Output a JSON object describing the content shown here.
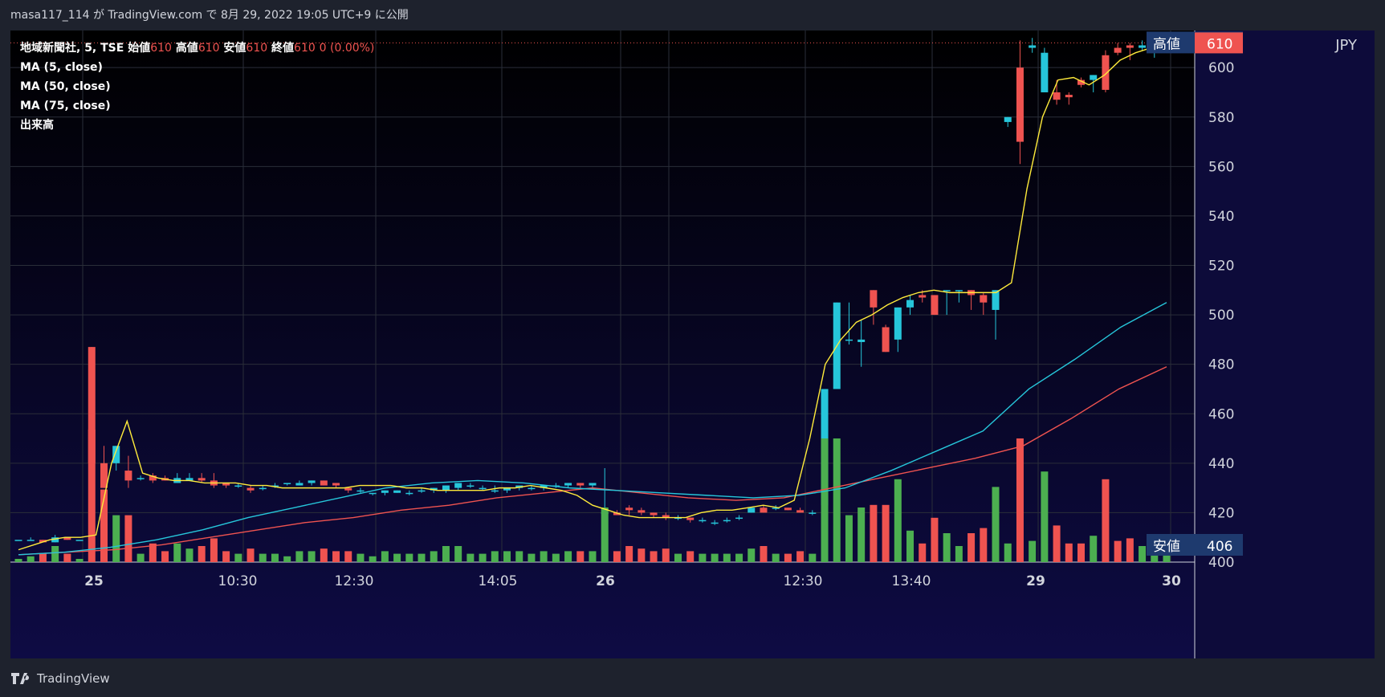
{
  "header": {
    "publish_line": "masa117_114 が TradingView.com で 8月 29, 2022 19:05 UTC+9 に公開"
  },
  "legend": {
    "symbol": "地域新聞社, 5, TSE",
    "open_label": "始値",
    "open_value": "610",
    "high_label": "高値",
    "high_value": "610",
    "low_label": "安値",
    "low_value": "610",
    "close_label": "終値",
    "close_value": "610",
    "change": "0 (0.00%)",
    "ma5": "MA (5, close)",
    "ma50": "MA (50, close)",
    "ma75": "MA (75, close)",
    "volume": "出来高"
  },
  "price_axis": {
    "currency": "JPY",
    "ticks": [
      "600",
      "580",
      "560",
      "540",
      "520",
      "500",
      "480",
      "460",
      "440",
      "420",
      "400"
    ],
    "high_tag_label": "高値",
    "high_tag_value": "610",
    "last_price_value": "610",
    "low_tag_label": "安値",
    "low_tag_value": "406"
  },
  "time_axis": {
    "labels": [
      "25",
      "10:30",
      "12:30",
      "14:05",
      "26",
      "12:30",
      "13:40",
      "29",
      "30"
    ]
  },
  "footer": {
    "brand": "TradingView"
  },
  "colors": {
    "up": "#26c6da",
    "down": "#ef5350",
    "vol_up": "#4caf50",
    "vol_down": "#ef5350",
    "ma5": "#ffeb3b",
    "ma50": "#26c6da",
    "ma75": "#ef5350",
    "grid": "#2a2e39"
  },
  "chart_data": {
    "type": "candlestick",
    "y_unit": "JPY",
    "ylim": [
      400,
      615
    ],
    "x_tick_labels": [
      "25",
      "10:30",
      "12:30",
      "14:05",
      "26",
      "12:30",
      "13:40",
      "29",
      "30"
    ],
    "candles_ohlc": [
      [
        409,
        409,
        409,
        409
      ],
      [
        409,
        410,
        409,
        409
      ],
      [
        409,
        409,
        408,
        408
      ],
      [
        408,
        411,
        408,
        410
      ],
      [
        410,
        410,
        409,
        409
      ],
      [
        409,
        409,
        409,
        409
      ],
      [
        487,
        487,
        440,
        440
      ],
      [
        440,
        447,
        430,
        430
      ],
      [
        440,
        447,
        437,
        447
      ],
      [
        437,
        443,
        430,
        433
      ],
      [
        434,
        435,
        433,
        434
      ],
      [
        435,
        436,
        432,
        433
      ],
      [
        434,
        435,
        433,
        433
      ],
      [
        432,
        436,
        432,
        434
      ],
      [
        433,
        436,
        433,
        434
      ],
      [
        434,
        436,
        432,
        433
      ],
      [
        433,
        436,
        430,
        431
      ],
      [
        432,
        432,
        430,
        431
      ],
      [
        431,
        432,
        430,
        431
      ],
      [
        430,
        431,
        428,
        429
      ],
      [
        430,
        431,
        429,
        430
      ],
      [
        431,
        432,
        430,
        431
      ],
      [
        432,
        432,
        431,
        432
      ],
      [
        431,
        433,
        431,
        432
      ],
      [
        432,
        433,
        431,
        433
      ],
      [
        433,
        433,
        431,
        431
      ],
      [
        432,
        432,
        430,
        431
      ],
      [
        430,
        430,
        428,
        429
      ],
      [
        429,
        430,
        428,
        429
      ],
      [
        428,
        428,
        427,
        428
      ],
      [
        428,
        429,
        427,
        429
      ],
      [
        428,
        429,
        428,
        429
      ],
      [
        428,
        429,
        427,
        428
      ],
      [
        429,
        430,
        428,
        429
      ],
      [
        429,
        430,
        428,
        430
      ],
      [
        429,
        431,
        428,
        431
      ],
      [
        430,
        432,
        429,
        432
      ],
      [
        431,
        432,
        430,
        431
      ],
      [
        430,
        431,
        429,
        430
      ],
      [
        429,
        431,
        428,
        429
      ],
      [
        429,
        430,
        428,
        430
      ],
      [
        430,
        431,
        429,
        431
      ],
      [
        430,
        431,
        429,
        430
      ],
      [
        430,
        431,
        429,
        431
      ],
      [
        431,
        432,
        430,
        431
      ],
      [
        431,
        432,
        430,
        432
      ],
      [
        432,
        432,
        430,
        431
      ],
      [
        431,
        432,
        430,
        432
      ],
      [
        420,
        438,
        418,
        420
      ],
      [
        420,
        421,
        419,
        419
      ],
      [
        422,
        423,
        419,
        421
      ],
      [
        421,
        422,
        419,
        420
      ],
      [
        420,
        420,
        418,
        419
      ],
      [
        419,
        420,
        417,
        418
      ],
      [
        418,
        419,
        417,
        418
      ],
      [
        418,
        418,
        416,
        417
      ],
      [
        417,
        418,
        416,
        417
      ],
      [
        416,
        417,
        415,
        416
      ],
      [
        417,
        418,
        416,
        417
      ],
      [
        418,
        419,
        417,
        418
      ],
      [
        420,
        422,
        420,
        422
      ],
      [
        422,
        423,
        420,
        420
      ],
      [
        422,
        423,
        421,
        422
      ],
      [
        422,
        422,
        421,
        421
      ],
      [
        421,
        422,
        420,
        420
      ],
      [
        420,
        421,
        419,
        420
      ],
      [
        423,
        470,
        420,
        470
      ],
      [
        470,
        505,
        478,
        505
      ],
      [
        490,
        505,
        488,
        490
      ],
      [
        489,
        498,
        479,
        490
      ],
      [
        510,
        510,
        496,
        503
      ],
      [
        495,
        496,
        485,
        485
      ],
      [
        490,
        503,
        485,
        503
      ],
      [
        503,
        508,
        500,
        506
      ],
      [
        508,
        510,
        505,
        507
      ],
      [
        508,
        508,
        500,
        500
      ],
      [
        510,
        510,
        500,
        510
      ],
      [
        510,
        510,
        505,
        510
      ],
      [
        510,
        510,
        502,
        508
      ],
      [
        508,
        509,
        500,
        505
      ],
      [
        502,
        510,
        490,
        510
      ],
      [
        578,
        580,
        576,
        580
      ],
      [
        600,
        611,
        561,
        570
      ],
      [
        608,
        612,
        606,
        609
      ],
      [
        590,
        608,
        590,
        606
      ],
      [
        590,
        595,
        585,
        587
      ],
      [
        589,
        590,
        585,
        588
      ],
      [
        595,
        596,
        592,
        593
      ],
      [
        595,
        597,
        590,
        597
      ],
      [
        605,
        607,
        590,
        591
      ],
      [
        608,
        610,
        605,
        606
      ],
      [
        609,
        610,
        603,
        608
      ],
      [
        608,
        611,
        607,
        609
      ],
      [
        610,
        610,
        604,
        610
      ],
      [
        610,
        610,
        607,
        610
      ]
    ],
    "volume_ohlc_dir": "derived from candles",
    "ma5_values": [
      405,
      407,
      409,
      410,
      410,
      411,
      440,
      457,
      436,
      434,
      433,
      433,
      432,
      432,
      432,
      431,
      431,
      430,
      430,
      430,
      430,
      430,
      431,
      431,
      431,
      430,
      430,
      429,
      429,
      429,
      429,
      430,
      430,
      431,
      430,
      429,
      427,
      423,
      421,
      419,
      418,
      418,
      418,
      418,
      420,
      421,
      421,
      422,
      423,
      422,
      425,
      450,
      480,
      490,
      497,
      500,
      504,
      507,
      509,
      510,
      509,
      509,
      509,
      509,
      513,
      551,
      580,
      595,
      596,
      593,
      597,
      603,
      606,
      608,
      610
    ],
    "ma50_values": [
      403,
      404,
      406,
      409,
      413,
      418,
      422,
      426,
      430,
      432,
      433,
      432,
      430,
      429,
      428,
      427,
      426,
      427,
      430,
      437,
      445,
      453,
      470,
      482,
      495,
      505
    ],
    "ma75_values": [
      403,
      404,
      405,
      407,
      410,
      413,
      416,
      418,
      421,
      423,
      426,
      428,
      430,
      428,
      426,
      425,
      426,
      430,
      434,
      438,
      442,
      447,
      458,
      470,
      479
    ]
  }
}
